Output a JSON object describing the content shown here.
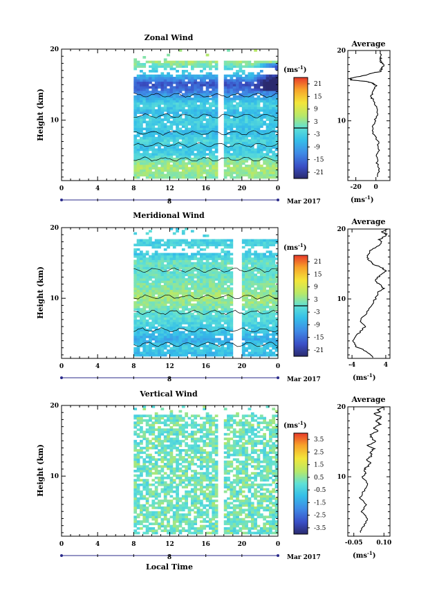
{
  "figure": {
    "xlabel": "Local Time",
    "panels": [
      {
        "id": "zonal",
        "title": "Zonal Wind",
        "ylabel": "Height (km)",
        "date_label": "8",
        "month_label": "Mar 2017",
        "colorbar": {
          "unit_label": "(ms",
          "unit_sup": "-1",
          "unit_close": ")",
          "ticks": [
            "21",
            "15",
            "9",
            "3",
            "-3",
            "-9",
            "-15",
            "-21"
          ],
          "min": -24,
          "max": 24,
          "zero_line": 0
        },
        "avg_title": "Average",
        "avg_unit": "(ms",
        "avg_unit_sup": "-1",
        "avg_unit_close": ")"
      },
      {
        "id": "meridional",
        "title": "Meridional Wind",
        "ylabel": "Height (km)",
        "date_label": "8",
        "month_label": "Mar 2017",
        "colorbar": {
          "unit_label": "(ms",
          "unit_sup": "-1",
          "unit_close": ")",
          "ticks": [
            "21",
            "15",
            "9",
            "3",
            "-3",
            "-9",
            "-15",
            "-21"
          ],
          "min": -24,
          "max": 24,
          "zero_line": 0
        },
        "avg_title": "Average",
        "avg_unit": "(ms",
        "avg_unit_sup": "-1",
        "avg_unit_close": ")"
      },
      {
        "id": "vertical",
        "title": "Vertical Wind",
        "ylabel": "Height (km)",
        "date_label": "8",
        "month_label": "Mar 2017",
        "colorbar": {
          "unit_label": "(ms",
          "unit_sup": "-1",
          "unit_close": ")",
          "ticks": [
            "3.5",
            "2.5",
            "1.5",
            "0.5",
            "-0.5",
            "-1.5",
            "-2.5",
            "-3.5"
          ],
          "min": -4,
          "max": 4,
          "zero_line": null
        },
        "avg_title": "Average",
        "avg_unit": "(ms",
        "avg_unit_sup": "-1",
        "avg_unit_close": ")"
      }
    ]
  },
  "chart_data": [
    {
      "type": "heatmap",
      "title": "Zonal Wind",
      "xlabel": "",
      "ylabel": "Height (km)",
      "x_range": [
        0,
        24
      ],
      "x_ticks": [
        "0",
        "4",
        "8",
        "12",
        "16",
        "20",
        "0"
      ],
      "y_range": [
        1.5,
        20
      ],
      "y_ticks": [
        "10",
        "20"
      ],
      "data_coverage_hours": [
        8,
        24
      ],
      "gap_hour": 17.8,
      "profile": [
        [
          2,
          3
        ],
        [
          3,
          5
        ],
        [
          4,
          3
        ],
        [
          5,
          -3
        ],
        [
          6,
          -5
        ],
        [
          7,
          -2
        ],
        [
          8,
          -6
        ],
        [
          9,
          -4
        ],
        [
          10,
          -3
        ],
        [
          11,
          -7
        ],
        [
          12,
          -2
        ],
        [
          13,
          -8
        ],
        [
          14,
          -14
        ],
        [
          15,
          -18
        ],
        [
          16,
          -8
        ],
        [
          17,
          -2
        ],
        [
          18,
          4
        ]
      ]
    },
    {
      "type": "line",
      "title": "Average",
      "xlabel": "(ms-1)",
      "x_ticks": [
        "-20",
        "0"
      ],
      "x_range": [
        -28,
        14
      ],
      "y_range": [
        1.5,
        20
      ],
      "y_ticks": [
        "10",
        "20"
      ],
      "series": [
        {
          "x": [
            2,
            3,
            1,
            1,
            3,
            2,
            -2,
            -4,
            -1,
            2,
            0,
            -3,
            -5,
            -3,
            -1,
            0,
            -2,
            -4,
            -10,
            -24,
            -26,
            -20,
            -10,
            -4,
            4,
            6,
            8,
            4,
            5,
            4
          ],
          "y": [
            2,
            3,
            4,
            5,
            6,
            7,
            8,
            9,
            10,
            11,
            12,
            13,
            13.5,
            14,
            14.5,
            15,
            15.2,
            15.4,
            15.6,
            15.8,
            16,
            16.2,
            16.5,
            16.8,
            17,
            17.5,
            18,
            18.5,
            19,
            20
          ]
        }
      ]
    },
    {
      "type": "heatmap",
      "title": "Meridional Wind",
      "xlabel": "",
      "ylabel": "Height (km)",
      "x_range": [
        0,
        24
      ],
      "x_ticks": [
        "0",
        "4",
        "8",
        "12",
        "16",
        "20",
        "0"
      ],
      "y_range": [
        1.5,
        20
      ],
      "y_ticks": [
        "10",
        "20"
      ],
      "data_coverage_hours": [
        8,
        24
      ],
      "gap_hour": 19.5,
      "profile": [
        [
          2,
          -6
        ],
        [
          3,
          -4
        ],
        [
          4,
          -8
        ],
        [
          5,
          -5
        ],
        [
          6,
          -3
        ],
        [
          7,
          -1
        ],
        [
          8,
          0
        ],
        [
          9,
          3
        ],
        [
          10,
          5
        ],
        [
          11,
          3
        ],
        [
          12,
          2
        ],
        [
          13,
          1
        ],
        [
          14,
          0
        ],
        [
          15,
          1
        ],
        [
          16,
          -4
        ],
        [
          17,
          -2
        ],
        [
          18,
          -3
        ]
      ]
    },
    {
      "type": "line",
      "title": "Average",
      "xlabel": "(ms-1)",
      "x_ticks": [
        "-4",
        "4"
      ],
      "x_range": [
        -5,
        5
      ],
      "y_range": [
        1.5,
        20
      ],
      "y_ticks": [
        "10",
        "20"
      ],
      "series": [
        {
          "x": [
            1,
            -0.5,
            -3,
            -3.8,
            -2.5,
            -1,
            -2,
            -0.5,
            0.5,
            1.5,
            2.3,
            3.5,
            2.8,
            1.5,
            2,
            3,
            4,
            3,
            1,
            0,
            -0.5,
            0,
            0.5,
            2,
            3,
            2.5,
            4,
            4.2,
            3,
            4.5
          ],
          "y": [
            1.6,
            2.5,
            3.2,
            4,
            5,
            6,
            7,
            8,
            9,
            10,
            11,
            11.5,
            12,
            12.5,
            13,
            13.5,
            14,
            14.5,
            15,
            15.5,
            16,
            16.5,
            17,
            17.5,
            18,
            18.5,
            19,
            19.3,
            19.6,
            20
          ]
        }
      ]
    },
    {
      "type": "heatmap",
      "title": "Vertical Wind",
      "xlabel": "Local Time",
      "ylabel": "Height (km)",
      "x_range": [
        0,
        24
      ],
      "x_ticks": [
        "0",
        "4",
        "8",
        "12",
        "16",
        "20",
        "0"
      ],
      "y_range": [
        1.5,
        20
      ],
      "y_ticks": [
        "10",
        "20"
      ],
      "data_coverage_hours": [
        8,
        24
      ],
      "gap_hour": 17.8
    },
    {
      "type": "line",
      "title": "Average",
      "xlabel": "(ms-1)",
      "x_ticks": [
        "-0.05",
        "0.10"
      ],
      "x_range": [
        -0.08,
        0.13
      ],
      "y_range": [
        1.5,
        20
      ],
      "y_ticks": [
        "10",
        "20"
      ],
      "series": [
        {
          "x": [
            -0.02,
            0.0,
            0.02,
            -0.01,
            0.01,
            -0.02,
            0.0,
            0.02,
            -0.01,
            0.01,
            0.0,
            0.02,
            0.03,
            0.01,
            0.04,
            0.03,
            0.05,
            0.02,
            0.06,
            0.04,
            0.03,
            0.07,
            0.05,
            0.08,
            0.06,
            0.09,
            0.05,
            0.08,
            0.07,
            0.1
          ],
          "y": [
            2,
            3,
            4,
            5,
            6,
            7,
            8,
            9,
            10,
            10.5,
            11,
            11.5,
            12,
            12.5,
            13,
            13.5,
            14,
            14.5,
            15,
            15.5,
            16,
            16.5,
            17,
            17.5,
            18,
            18.5,
            19,
            19.3,
            19.6,
            20
          ]
        }
      ]
    }
  ]
}
